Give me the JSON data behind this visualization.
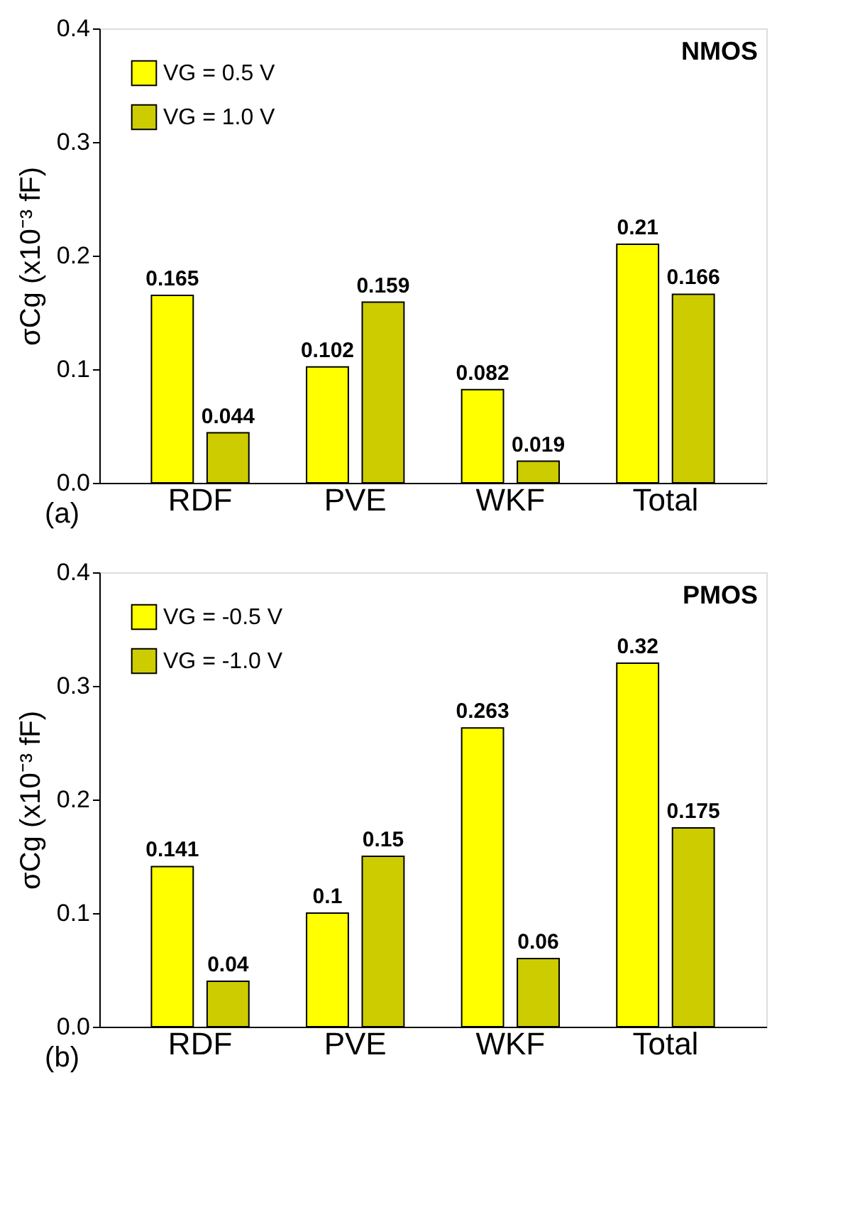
{
  "chart_data": [
    {
      "type": "bar",
      "ylabel": "σCg (x10⁻³ fF)",
      "categories": [
        "RDF",
        "PVE",
        "WKF",
        "Total"
      ],
      "series": [
        {
          "name": "VG = 0.5 V",
          "color": "#ffff00",
          "values": [
            0.165,
            0.102,
            0.082,
            0.21
          ]
        },
        {
          "name": "VG = 1.0 V",
          "color": "#cccc00",
          "values": [
            0.044,
            0.159,
            0.019,
            0.166
          ]
        }
      ],
      "ylim": [
        0,
        0.4
      ],
      "yticks": [
        {
          "value": 0,
          "label": "0.0"
        },
        0.1,
        0.2,
        0.3,
        0.4
      ],
      "data_labels": true,
      "legend": "top left",
      "grid": false,
      "annotations": [
        "NMOS",
        "(a)"
      ]
    },
    {
      "type": "bar",
      "ylabel": "σCg (x10⁻³ fF)",
      "categories": [
        "RDF",
        "PVE",
        "WKF",
        "Total"
      ],
      "series": [
        {
          "name": "VG = -0.5 V",
          "color": "#ffff00",
          "values": [
            0.141,
            0.1,
            0.263,
            0.32
          ]
        },
        {
          "name": "VG = -1.0 V",
          "color": "#cccc00",
          "values": [
            0.04,
            0.15,
            0.06,
            0.175
          ]
        }
      ],
      "ylim": [
        0,
        0.4
      ],
      "yticks": [
        {
          "value": 0,
          "label": "0.0"
        },
        0.1,
        0.2,
        0.3,
        0.4
      ],
      "data_labels": true,
      "legend": "top left",
      "grid": false,
      "annotations": [
        "PMOS",
        "(b)"
      ]
    }
  ]
}
